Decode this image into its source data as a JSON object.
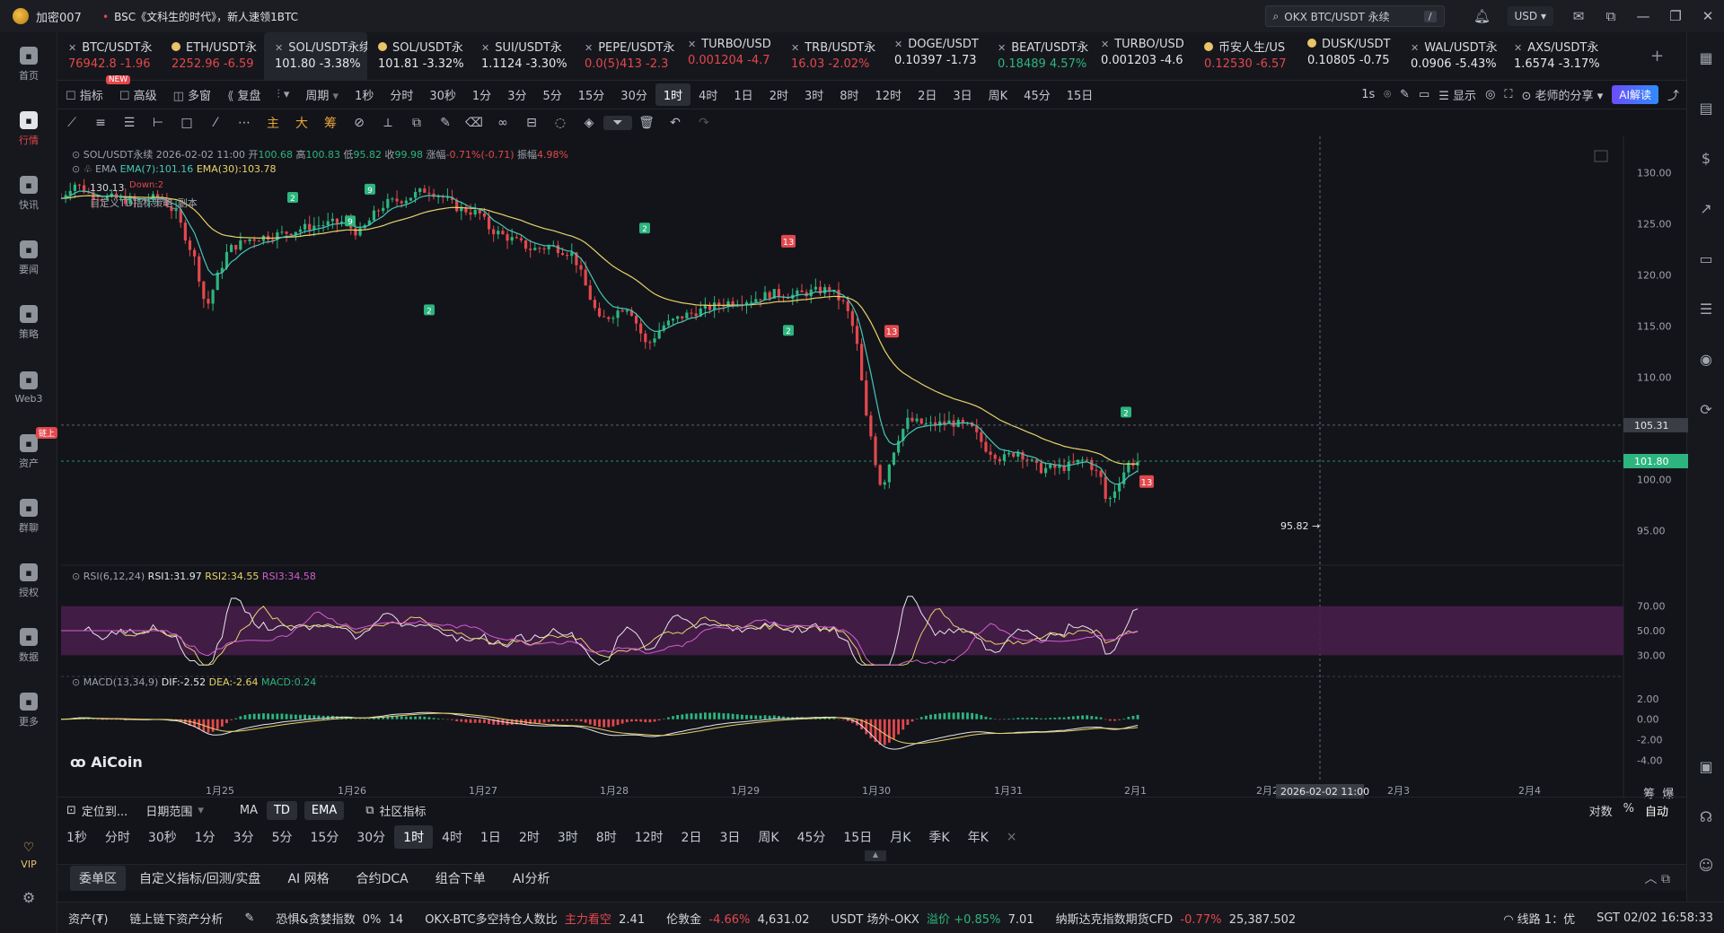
{
  "titlebar": {
    "app_name": "加密007",
    "notice": "BSC《文科生的时代》，新人速领1BTC",
    "search_placeholder": "OKX BTC/USDT 永续",
    "search_shortcut": "/",
    "currency": "USD"
  },
  "leftnav": [
    {
      "label": "首页",
      "icon": "home-icon"
    },
    {
      "label": "行情",
      "icon": "chart-bars-icon",
      "active": true
    },
    {
      "label": "快讯",
      "icon": "news-icon"
    },
    {
      "label": "要闻",
      "icon": "document-icon"
    },
    {
      "label": "策略",
      "icon": "robot-icon"
    },
    {
      "label": "Web3",
      "icon": "web3-icon"
    },
    {
      "label": "资产",
      "icon": "wallet-icon",
      "badge": "链上"
    },
    {
      "label": "群聊",
      "icon": "chat-icon"
    },
    {
      "label": "授权",
      "icon": "key-icon"
    },
    {
      "label": "数据",
      "icon": "data-icon"
    },
    {
      "label": "更多",
      "icon": "grid-icon"
    }
  ],
  "leftnav_bottom": [
    {
      "label": "VIP",
      "icon": "vip-icon"
    },
    {
      "label": "",
      "icon": "settings-icon"
    }
  ],
  "tabs": [
    {
      "name": "BTC/USDT永",
      "price": "76942.8",
      "change": "-1.96",
      "dir": "dn",
      "mark": "x"
    },
    {
      "name": "ETH/USDT永",
      "price": "2252.96",
      "change": "-6.59",
      "dir": "dn",
      "mark": "dot",
      "dot_color": "#e8c46a"
    },
    {
      "name": "SOL/USDT永续",
      "price": "101.80",
      "change": "-3.38%",
      "dir": "wh",
      "mark": "x",
      "active": true
    },
    {
      "name": "SOL/USDT永",
      "price": "101.81",
      "change": "-3.32%",
      "dir": "wh",
      "mark": "dot",
      "dot_color": "#e8c46a"
    },
    {
      "name": "SUI/USDT永",
      "price": "1.1124",
      "change": "-3.30%",
      "dir": "wh",
      "mark": "x"
    },
    {
      "name": "PEPE/USDT永",
      "price": "0.0(5)413",
      "change": "-2.3",
      "dir": "dn",
      "mark": "x"
    },
    {
      "name": "TURBO/USD",
      "price": "0.001204",
      "change": "-4.7",
      "dir": "dn",
      "mark": "x"
    },
    {
      "name": "TRB/USDT永",
      "price": "16.03",
      "change": "-2.02%",
      "dir": "dn",
      "mark": "x"
    },
    {
      "name": "DOGE/USDT",
      "price": "0.10397",
      "change": "-1.73",
      "dir": "wh",
      "mark": "x"
    },
    {
      "name": "BEAT/USDT永",
      "price": "0.18489",
      "change": "4.57%",
      "dir": "up",
      "mark": "x"
    },
    {
      "name": "TURBO/USD",
      "price": "0.001203",
      "change": "-4.6",
      "dir": "wh",
      "mark": "x"
    },
    {
      "name": "币安人生/US",
      "price": "0.12530",
      "change": "-6.57",
      "dir": "dn",
      "mark": "dot",
      "dot_color": "#e8c46a"
    },
    {
      "name": "DUSK/USDT",
      "price": "0.10805",
      "change": "-0.75",
      "dir": "wh",
      "mark": "dot",
      "dot_color": "#e8c46a"
    },
    {
      "name": "WAL/USDT永",
      "price": "0.0906",
      "change": "-5.43%",
      "dir": "wh",
      "mark": "x"
    },
    {
      "name": "AXS/USDT永",
      "price": "1.6574",
      "change": "-3.17%",
      "dir": "wh",
      "mark": "x"
    }
  ],
  "toolbar1": {
    "items": [
      "指标",
      "高级",
      "多窗",
      "复盘",
      "",
      "周期",
      "1秒",
      "分时",
      "30秒",
      "1分",
      "3分",
      "5分",
      "15分",
      "30分",
      "1时",
      "4时",
      "1日",
      "2时",
      "3时",
      "8时",
      "12时",
      "2日",
      "3日",
      "周K",
      "45分",
      "15日"
    ],
    "selected": "1时",
    "new_badge": "NEW",
    "right": [
      "1s",
      "显示",
      "老师的分享"
    ],
    "ai_label": "AI解读"
  },
  "toolbar2_labels": [
    "主",
    "大",
    "筹"
  ],
  "chart": {
    "symbol_line": "SOL/USDT永续  2026-02-02 11:00",
    "ohlc": {
      "open_label": "开",
      "open": "100.68",
      "high_label": "高",
      "high": "100.83",
      "low_label": "低",
      "low": "95.82",
      "close_label": "收",
      "close": "99.98",
      "change_label": "涨幅",
      "change": "-0.71%(-0.71)",
      "amp_label": "振幅",
      "amp": "4.98%"
    },
    "ema_line": {
      "name": "EMA",
      "ema7": "EMA(7):101.16",
      "ema30": "EMA(30):103.78"
    },
    "td_lines": [
      "130.13",
      "Down:2",
      "自定义TD指标策略_副本"
    ],
    "price_axis": [
      "130.00",
      "125.00",
      "120.00",
      "115.00",
      "110.00",
      "105.00",
      "100.00",
      "95.00"
    ],
    "crosshair_price": "105.31",
    "last_price": "101.80",
    "low_marker": "95.82",
    "x_labels": [
      "1月25",
      "1月26",
      "1月27",
      "1月28",
      "1月29",
      "1月30",
      "1月31",
      "2月1",
      "2月2",
      "2月3",
      "2月4"
    ],
    "crosshair_time": "2026-02-02 11:00",
    "watermark": "AiCoin",
    "axis_corner": [
      "筹",
      "爆"
    ]
  },
  "rsi": {
    "title": "RSI(6,12,24)",
    "rsi1": "RSI1:31.97",
    "rsi2": "RSI2:34.55",
    "rsi3": "RSI3:34.58",
    "axis": [
      "70.00",
      "50.00",
      "30.00"
    ]
  },
  "macd": {
    "title": "MACD(13,34,9)",
    "dif": "DIF:-2.52",
    "dea": "DEA:-2.64",
    "macd": "MACD:0.24",
    "axis": [
      "2.00",
      "0.00",
      "-2.00",
      "-4.00"
    ]
  },
  "bottom_bar1": {
    "items": [
      "定位到...",
      "日期范围",
      "MA",
      "TD",
      "EMA",
      "社区指标"
    ],
    "right": [
      "对数",
      "%",
      "自动"
    ]
  },
  "bottom_tf": [
    "1秒",
    "分时",
    "30秒",
    "1分",
    "3分",
    "5分",
    "15分",
    "30分",
    "1时",
    "4时",
    "1日",
    "2时",
    "3时",
    "8时",
    "12时",
    "2日",
    "3日",
    "周K",
    "45分",
    "15日",
    "月K",
    "季K",
    "年K",
    "×"
  ],
  "bottom_tf_selected": "1时",
  "panel_tabs": [
    "委单区",
    "自定义指标/回测/实盘",
    "AI 网格",
    "合约DCA",
    "组合下单",
    "AI分析"
  ],
  "statusbar": {
    "assets": "资产(₮)",
    "analysis": "链上链下资产分析",
    "fear_label": "恐惧&贪婪指数",
    "fear_pct": "0%",
    "fear_val": "14",
    "ls_label": "OKX-BTC多空持仓人数比",
    "ls_tag": "主力看空",
    "ls_val": "2.41",
    "gold_label": "伦敦金",
    "gold_chg": "-4.66%",
    "gold_val": "4,631.02",
    "usdt_label": "USDT 场外-OKX",
    "usdt_tag": "溢价",
    "usdt_chg": "+0.85%",
    "usdt_val": "7.01",
    "nas_label": "纳斯达克指数期货CFD",
    "nas_chg": "-0.77%",
    "nas_val": "25,387.502",
    "line": "线路 1：优",
    "time": "SGT 02/02 16:58:33"
  },
  "colors": {
    "up": "#2db57f",
    "down": "#e2484d",
    "ema7": "#46c7b8",
    "ema30": "#e8d36a",
    "rsi_band": "#4a1d4e"
  }
}
